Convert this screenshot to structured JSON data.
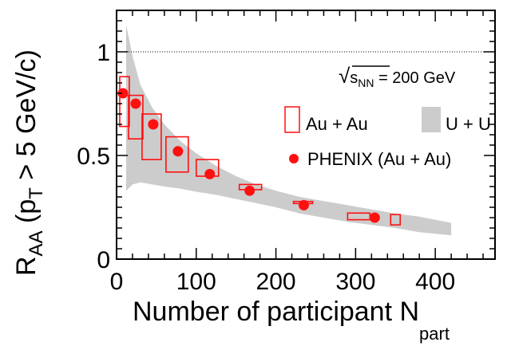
{
  "chart_data": {
    "type": "scatter",
    "x_label": "Number of participant N",
    "x_label_sub": "part",
    "y_label_main": "R",
    "y_label_sub": "AA",
    "y_label_rest_a": " (p",
    "y_label_rest_sub": "T",
    "y_label_rest_b": " > 5 GeV/c)",
    "xlim": [
      0,
      475
    ],
    "ylim": [
      0,
      1.2
    ],
    "x_ticks": [
      0,
      100,
      200,
      300,
      400
    ],
    "x_tick_labels": [
      "0",
      "100",
      "200",
      "300",
      "400"
    ],
    "y_ticks": [
      0,
      0.5,
      1
    ],
    "y_tick_labels": [
      "0",
      "0.5",
      "1"
    ],
    "reference_line": 1,
    "annotation": {
      "sqrt": "√",
      "s": "s",
      "sub": "NN",
      "rest": " = 200 GeV"
    },
    "legend": {
      "auau_box": "Au + Au",
      "uu_band": "U + U",
      "phenix": "PHENIX (Au + Au)"
    },
    "colors": {
      "red": "#ff1010",
      "band": "#cccccc"
    },
    "uu_band": {
      "x": [
        12,
        20,
        30,
        45,
        60,
        80,
        100,
        125,
        150,
        175,
        200,
        230,
        260,
        290,
        320,
        350,
        380,
        420
      ],
      "upper": [
        1.13,
        0.98,
        0.84,
        0.73,
        0.65,
        0.57,
        0.51,
        0.45,
        0.4,
        0.36,
        0.33,
        0.3,
        0.28,
        0.26,
        0.24,
        0.22,
        0.205,
        0.175
      ],
      "lower": [
        0.33,
        0.36,
        0.37,
        0.36,
        0.35,
        0.34,
        0.325,
        0.31,
        0.29,
        0.27,
        0.25,
        0.22,
        0.2,
        0.18,
        0.165,
        0.15,
        0.13,
        0.115
      ]
    },
    "auau_boxes": [
      {
        "x": 10,
        "half_width": 6,
        "ylow": 0.64,
        "yhigh": 0.88
      },
      {
        "x": 24,
        "half_width": 9,
        "ylow": 0.58,
        "yhigh": 0.79
      },
      {
        "x": 44,
        "half_width": 12,
        "ylow": 0.48,
        "yhigh": 0.7
      },
      {
        "x": 76,
        "half_width": 14,
        "ylow": 0.42,
        "yhigh": 0.59
      },
      {
        "x": 114,
        "half_width": 14,
        "ylow": 0.4,
        "yhigh": 0.48
      },
      {
        "x": 168,
        "half_width": 14,
        "ylow": 0.335,
        "yhigh": 0.36
      },
      {
        "x": 234,
        "half_width": 12,
        "ylow": 0.268,
        "yhigh": 0.278
      },
      {
        "x": 304,
        "half_width": 14,
        "ylow": 0.19,
        "yhigh": 0.222
      },
      {
        "x": 350,
        "half_width": 6,
        "ylow": 0.165,
        "yhigh": 0.215
      }
    ],
    "phenix_points": {
      "x": [
        8,
        24,
        46,
        77,
        117,
        167,
        235,
        324
      ],
      "y": [
        0.8,
        0.75,
        0.65,
        0.52,
        0.41,
        0.33,
        0.26,
        0.2
      ]
    }
  }
}
